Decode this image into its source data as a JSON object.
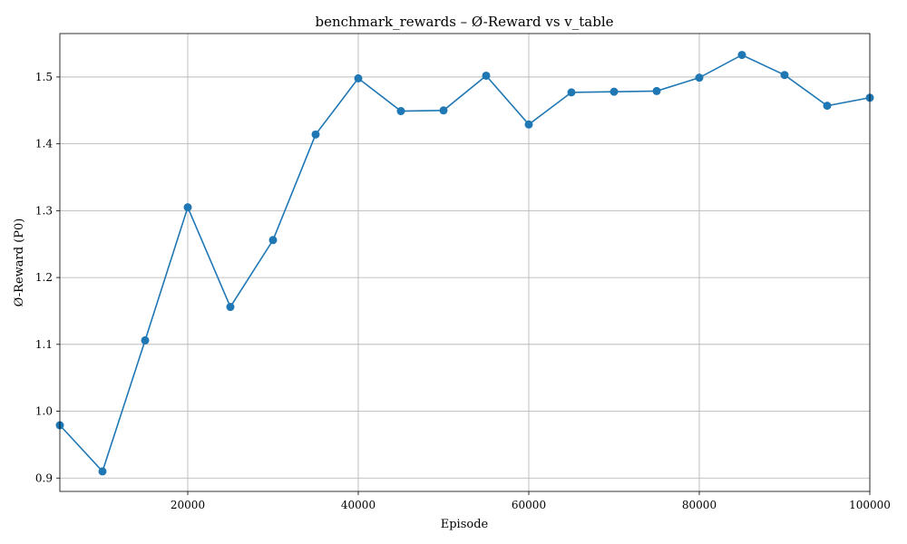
{
  "chart_data": {
    "type": "line",
    "title": "benchmark_rewards – Ø-Reward vs v_table",
    "xlabel": "Episode",
    "ylabel": "Ø-Reward (P0)",
    "xlim": [
      5000,
      100000
    ],
    "ylim": [
      0.88,
      1.565
    ],
    "xticks": [
      20000,
      40000,
      60000,
      80000,
      100000
    ],
    "yticks": [
      0.9,
      1.0,
      1.1,
      1.2,
      1.3,
      1.4,
      1.5
    ],
    "grid": true,
    "x": [
      5000,
      10000,
      15000,
      20000,
      25000,
      30000,
      35000,
      40000,
      45000,
      50000,
      55000,
      60000,
      65000,
      70000,
      75000,
      80000,
      85000,
      90000,
      95000,
      100000
    ],
    "series": [
      {
        "color": "#1f77b4",
        "marker": "circle",
        "values": [
          0.979,
          0.91,
          1.106,
          1.305,
          1.156,
          1.256,
          1.414,
          1.498,
          1.449,
          1.45,
          1.502,
          1.429,
          1.477,
          1.478,
          1.479,
          1.499,
          1.533,
          1.503,
          1.457,
          1.469
        ]
      }
    ]
  }
}
